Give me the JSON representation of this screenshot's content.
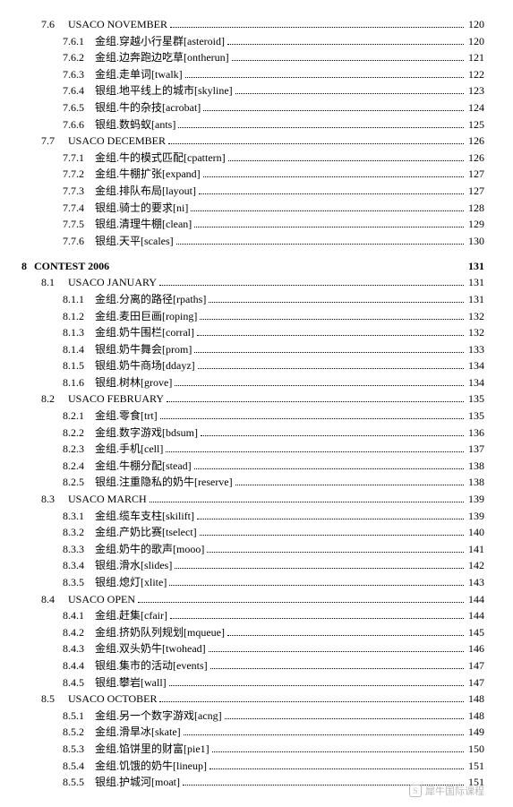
{
  "sections": [
    {
      "level": 1,
      "num": "7.6",
      "label": "USACO NOVEMBER",
      "page": "120"
    },
    {
      "level": 2,
      "num": "7.6.1",
      "label": "金组.穿越小行星群[asteroid]",
      "page": "120"
    },
    {
      "level": 2,
      "num": "7.6.2",
      "label": "金组.边奔跑边吃草[ontherun]",
      "page": "121"
    },
    {
      "level": 2,
      "num": "7.6.3",
      "label": "金组.走单词[twalk]",
      "page": "122"
    },
    {
      "level": 2,
      "num": "7.6.4",
      "label": "银组.地平线上的城市[skyline]",
      "page": "123"
    },
    {
      "level": 2,
      "num": "7.6.5",
      "label": "银组.牛的杂技[acrobat]",
      "page": "124"
    },
    {
      "level": 2,
      "num": "7.6.6",
      "label": "银组.数蚂蚁[ants]",
      "page": "125"
    },
    {
      "level": 1,
      "num": "7.7",
      "label": "USACO DECEMBER",
      "page": "126"
    },
    {
      "level": 2,
      "num": "7.7.1",
      "label": "金组.牛的模式匹配[cpattern]",
      "page": "126"
    },
    {
      "level": 2,
      "num": "7.7.2",
      "label": "金组.牛棚扩张[expand]",
      "page": "127"
    },
    {
      "level": 2,
      "num": "7.7.3",
      "label": "金组.排队布局[layout]",
      "page": "127"
    },
    {
      "level": 2,
      "num": "7.7.4",
      "label": "银组.骑士的要求[ni]",
      "page": "128"
    },
    {
      "level": 2,
      "num": "7.7.5",
      "label": "银组.清理牛棚[clean]",
      "page": "129"
    },
    {
      "level": 2,
      "num": "7.7.6",
      "label": "银组.天平[scales]",
      "page": "130"
    }
  ],
  "chapter": {
    "num": "8",
    "label": "CONTEST 2006",
    "page": "131"
  },
  "sections2": [
    {
      "level": 1,
      "num": "8.1",
      "label": "USACO JANUARY",
      "page": "131"
    },
    {
      "level": 2,
      "num": "8.1.1",
      "label": "金组.分离的路径[rpaths]",
      "page": "131"
    },
    {
      "level": 2,
      "num": "8.1.2",
      "label": "金组.麦田巨画[roping]",
      "page": "132"
    },
    {
      "level": 2,
      "num": "8.1.3",
      "label": "金组.奶牛围栏[corral]",
      "page": "132"
    },
    {
      "level": 2,
      "num": "8.1.4",
      "label": "银组.奶牛舞会[prom]",
      "page": "133"
    },
    {
      "level": 2,
      "num": "8.1.5",
      "label": "银组.奶牛商场[ddayz]",
      "page": "134"
    },
    {
      "level": 2,
      "num": "8.1.6",
      "label": "银组.树林[grove]",
      "page": "134"
    },
    {
      "level": 1,
      "num": "8.2",
      "label": "USACO FEBRUARY",
      "page": "135"
    },
    {
      "level": 2,
      "num": "8.2.1",
      "label": "金组.零食[trt]",
      "page": "135"
    },
    {
      "level": 2,
      "num": "8.2.2",
      "label": "金组.数字游戏[bdsum]",
      "page": "136"
    },
    {
      "level": 2,
      "num": "8.2.3",
      "label": "金组.手机[cell]",
      "page": "137"
    },
    {
      "level": 2,
      "num": "8.2.4",
      "label": "金组.牛棚分配[stead]",
      "page": "138"
    },
    {
      "level": 2,
      "num": "8.2.5",
      "label": "银组.注重隐私的奶牛[reserve]",
      "page": "138"
    },
    {
      "level": 1,
      "num": "8.3",
      "label": "USACO MARCH",
      "page": "139"
    },
    {
      "level": 2,
      "num": "8.3.1",
      "label": "金组.缆车支柱[skilift]",
      "page": "139"
    },
    {
      "level": 2,
      "num": "8.3.2",
      "label": "金组.产奶比赛[tselect]",
      "page": "140"
    },
    {
      "level": 2,
      "num": "8.3.3",
      "label": "金组.奶牛的歌声[mooo]",
      "page": "141"
    },
    {
      "level": 2,
      "num": "8.3.4",
      "label": "银组.滑水[slides]",
      "page": "142"
    },
    {
      "level": 2,
      "num": "8.3.5",
      "label": "银组.熄灯[xlite]",
      "page": "143"
    },
    {
      "level": 1,
      "num": "8.4",
      "label": "USACO OPEN",
      "page": "144"
    },
    {
      "level": 2,
      "num": "8.4.1",
      "label": "金组.赶集[cfair]",
      "page": "144"
    },
    {
      "level": 2,
      "num": "8.4.2",
      "label": "金组.挤奶队列规划[mqueue]",
      "page": "145"
    },
    {
      "level": 2,
      "num": "8.4.3",
      "label": "金组.双头奶牛[twohead]",
      "page": "146"
    },
    {
      "level": 2,
      "num": "8.4.4",
      "label": "银组.集市的活动[events]",
      "page": "147"
    },
    {
      "level": 2,
      "num": "8.4.5",
      "label": "银组.攀岩[wall]",
      "page": "147"
    },
    {
      "level": 1,
      "num": "8.5",
      "label": "USACO OCTOBER",
      "page": "148"
    },
    {
      "level": 2,
      "num": "8.5.1",
      "label": "金组.另一个数字游戏[acng]",
      "page": "148"
    },
    {
      "level": 2,
      "num": "8.5.2",
      "label": "金组.滑旱冰[skate]",
      "page": "149"
    },
    {
      "level": 2,
      "num": "8.5.3",
      "label": "金组.馅饼里的财富[pie1]",
      "page": "150"
    },
    {
      "level": 2,
      "num": "8.5.4",
      "label": "金组.饥饿的奶牛[lineup]",
      "page": "151"
    },
    {
      "level": 2,
      "num": "8.5.5",
      "label": "银组.护城河[moat]",
      "page": "151"
    }
  ],
  "watermark": {
    "icon": "S",
    "text": "犀牛国际课程"
  }
}
